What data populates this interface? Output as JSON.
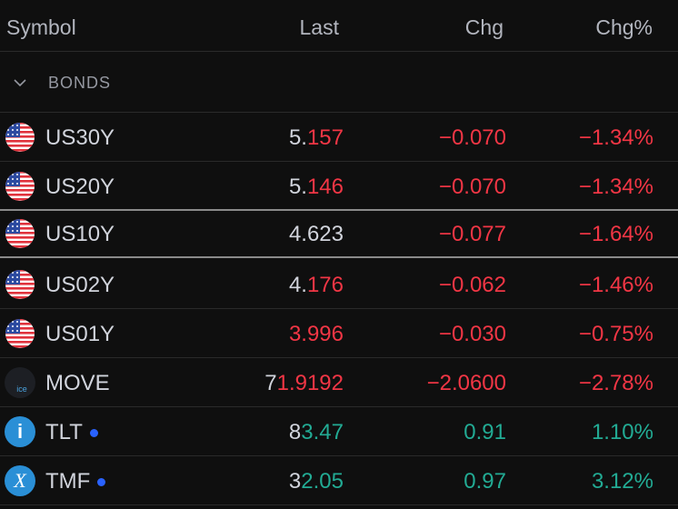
{
  "header": {
    "symbol": "Symbol",
    "last": "Last",
    "chg": "Chg",
    "chg_pct": "Chg%"
  },
  "group": {
    "title": "BONDS"
  },
  "rows": [
    {
      "symbol": "US30Y",
      "last": [
        {
          "text": "5.",
          "color": "#d1d4dc"
        },
        {
          "text": "157",
          "color": "#f23645"
        }
      ],
      "chg": "−0.070",
      "chg_pct": "−1.34%",
      "color": "#f23645"
    },
    {
      "symbol": "US20Y",
      "last": [
        {
          "text": "5.",
          "color": "#d1d4dc"
        },
        {
          "text": "146",
          "color": "#f23645"
        }
      ],
      "chg": "−0.070",
      "chg_pct": "−1.34%",
      "color": "#f23645"
    },
    {
      "symbol": "US10Y",
      "last": [
        {
          "text": "4.623",
          "color": "#d1d4dc"
        }
      ],
      "chg": "−0.077",
      "chg_pct": "−1.64%",
      "color": "#f23645"
    },
    {
      "symbol": "US02Y",
      "last": [
        {
          "text": "4.",
          "color": "#d1d4dc"
        },
        {
          "text": "176",
          "color": "#f23645"
        }
      ],
      "chg": "−0.062",
      "chg_pct": "−1.46%",
      "color": "#f23645"
    },
    {
      "symbol": "US01Y",
      "last": [
        {
          "text": "3.996",
          "color": "#f23645"
        }
      ],
      "chg": "−0.030",
      "chg_pct": "−0.75%",
      "color": "#f23645"
    },
    {
      "symbol": "MOVE",
      "icon_text": "ice",
      "last": [
        {
          "text": "7",
          "color": "#d1d4dc"
        },
        {
          "text": "1.9192",
          "color": "#f23645"
        }
      ],
      "chg": "−2.0600",
      "chg_pct": "−2.78%",
      "color": "#f23645"
    },
    {
      "symbol": "TLT",
      "icon_text": "i",
      "last": [
        {
          "text": "8",
          "color": "#d1d4dc"
        },
        {
          "text": "3.47",
          "color": "#22ab94"
        }
      ],
      "chg": "0.91",
      "chg_pct": "1.10%",
      "color": "#22ab94"
    },
    {
      "symbol": "TMF",
      "icon_text": "X",
      "last": [
        {
          "text": "3",
          "color": "#d1d4dc"
        },
        {
          "text": "2.05",
          "color": "#22ab94"
        }
      ],
      "chg": "0.97",
      "chg_pct": "3.12%",
      "color": "#22ab94"
    }
  ]
}
